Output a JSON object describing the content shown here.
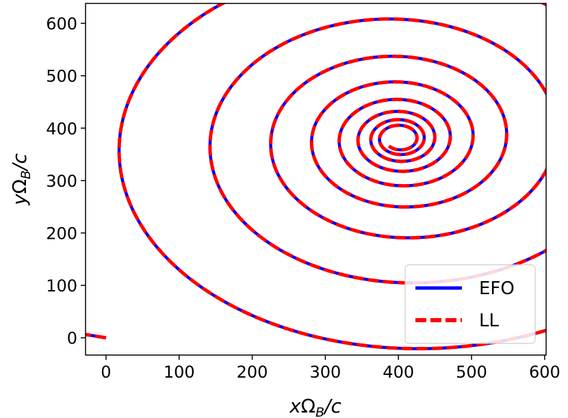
{
  "chart_data": {
    "type": "line",
    "title": "",
    "xlabel": {
      "var": "x",
      "omega": "Ω",
      "sub": "B",
      "tail": "/c"
    },
    "ylabel": {
      "var": "y",
      "omega": "Ω",
      "sub": "B",
      "tail": "/c"
    },
    "xlim": [
      -28,
      602
    ],
    "ylim": [
      -33,
      638
    ],
    "xticks": [
      0,
      100,
      200,
      300,
      400,
      500,
      600
    ],
    "yticks": [
      0,
      100,
      200,
      300,
      400,
      500,
      600
    ],
    "grid": false,
    "legend": {
      "placement": "lower-right"
    },
    "series": [
      {
        "name": "EFO",
        "color": "#0000ff",
        "style": "solid",
        "model": "damped-spiral",
        "center": [
          402,
          380
        ],
        "x": [
          0,
          1,
          5,
          20,
          60,
          120,
          200,
          260,
          320,
          350,
          390,
          440,
          490,
          540,
          565,
          575,
          560,
          520,
          470,
          420,
          360,
          310,
          285,
          285,
          310,
          360,
          400,
          440,
          470,
          490,
          505,
          505,
          490,
          460,
          420,
          400,
          370,
          340,
          320,
          318,
          332,
          360,
          402
        ],
        "y": [
          0,
          60,
          150,
          280,
          420,
          500,
          560,
          590,
          605,
          608,
          605,
          590,
          560,
          510,
          460,
          405,
          340,
          280,
          250,
          238,
          245,
          265,
          310,
          370,
          420,
          450,
          458,
          455,
          440,
          415,
          385,
          350,
          315,
          295,
          283,
          285,
          290,
          310,
          340,
          380,
          420,
          442,
          380
        ]
      },
      {
        "name": "LL",
        "color": "#ff0000",
        "style": "dashed",
        "model": "damped-spiral",
        "center": [
          402,
          380
        ],
        "x": [
          0,
          1,
          5,
          20,
          60,
          120,
          200,
          260,
          320,
          350,
          390,
          440,
          490,
          540,
          565,
          575,
          560,
          520,
          470,
          420,
          360,
          310,
          285,
          285,
          310,
          360,
          400,
          440,
          470,
          490,
          505,
          505,
          490,
          460,
          420,
          400,
          370,
          340,
          320,
          318,
          332,
          360,
          402
        ],
        "y": [
          0,
          60,
          150,
          280,
          420,
          500,
          560,
          590,
          605,
          608,
          605,
          590,
          560,
          510,
          460,
          405,
          340,
          280,
          250,
          238,
          245,
          265,
          310,
          370,
          420,
          450,
          458,
          455,
          440,
          415,
          385,
          350,
          315,
          295,
          283,
          285,
          290,
          310,
          340,
          380,
          420,
          442,
          380
        ]
      }
    ]
  }
}
